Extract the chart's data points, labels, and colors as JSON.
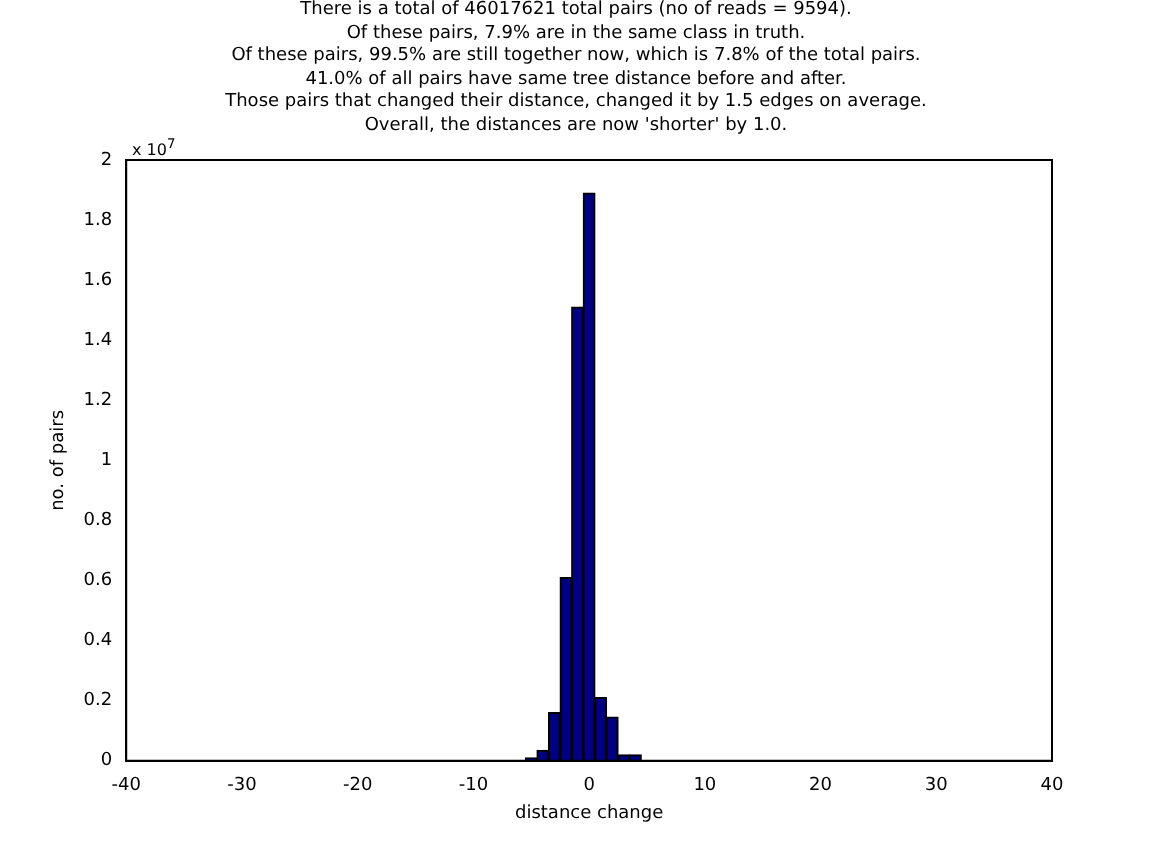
{
  "chart_data": {
    "type": "histogram",
    "title": "There is a total of 46017621 total pairs (no of reads = 9594).\nOf these pairs, 7.9% are in the same class in truth.\nOf these pairs, 99.5% are still together now, which is 7.8% of the total pairs.\n41.0% of all pairs have same tree distance before and after.\nThose pairs that changed their distance, changed it by 1.5 edges on average.\nOverall, the distances are now 'shorter' by 1.0.",
    "xlabel": "distance change",
    "ylabel": "no. of pairs",
    "annotations": [
      "x 10$^{7}$"
    ],
    "bins": [
      -5.5,
      -4.5,
      -3.5,
      -2.5,
      -1.5,
      -0.5,
      0.5,
      1.5,
      2.5,
      3.5,
      4.5
    ],
    "values": [
      0.01,
      0.035,
      0.16,
      0.61,
      1.51,
      1.89,
      0.21,
      0.145,
      0.02,
      0.02
    ],
    "color": "#000080",
    "xlim": [
      -40,
      40
    ],
    "xticks": [
      -40,
      -30,
      -20,
      -10,
      0,
      10,
      20,
      30,
      40
    ],
    "ylim": [
      0,
      2
    ],
    "yticks": [
      0,
      0.2,
      0.4,
      0.6,
      0.8,
      1,
      1.2,
      1.4,
      1.6,
      1.8,
      2
    ],
    "grid": false,
    "legend": false
  }
}
